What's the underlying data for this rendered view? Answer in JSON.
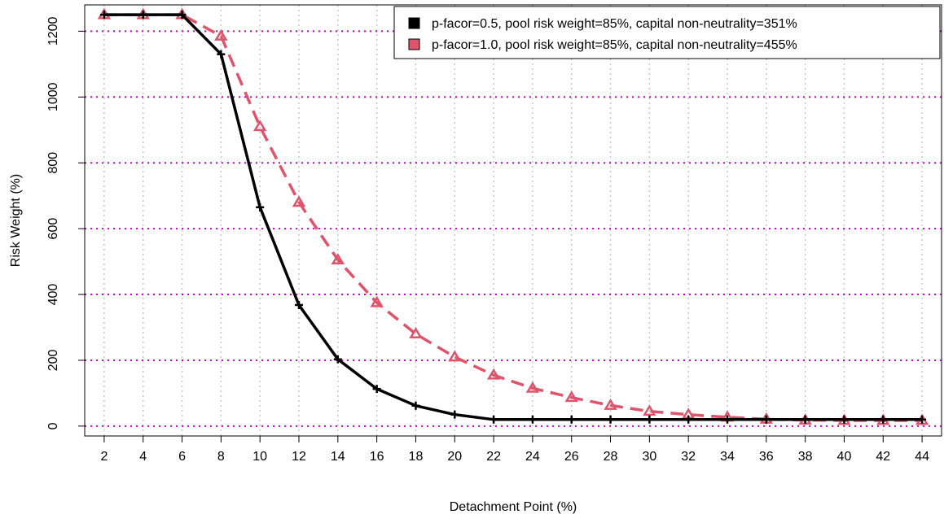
{
  "chart_data": {
    "type": "line",
    "title": "",
    "xlabel": "Detachment Point (%)",
    "ylabel": "Risk Weight (%)",
    "xlim": [
      1,
      45
    ],
    "ylim": [
      -30,
      1280
    ],
    "x_ticks": [
      2,
      4,
      6,
      8,
      10,
      12,
      14,
      16,
      18,
      20,
      22,
      24,
      26,
      28,
      30,
      32,
      34,
      36,
      38,
      40,
      42,
      44
    ],
    "y_ticks": [
      0,
      200,
      400,
      600,
      800,
      1000,
      1200
    ],
    "grid": {
      "vertical": "dotted gray",
      "horizontal": "dotted magenta"
    },
    "legend_position": "top-right",
    "x": [
      2,
      4,
      6,
      8,
      10,
      12,
      14,
      16,
      18,
      20,
      22,
      24,
      26,
      28,
      30,
      32,
      34,
      36,
      38,
      40,
      42,
      44
    ],
    "series": [
      {
        "name": "p-facor=0.5, pool risk weight=85%, capital non-neutrality=351%",
        "color": "#000000",
        "line_style": "solid",
        "marker": "cross",
        "values": [
          1250,
          1250,
          1250,
          1130,
          665,
          368,
          203,
          113,
          62,
          35,
          20,
          20,
          20,
          20,
          20,
          20,
          20,
          20,
          20,
          20,
          20,
          20
        ]
      },
      {
        "name": "p-facor=1.0, pool risk weight=85%, capital non-neutrality=455%",
        "color": "#DF536B",
        "line_style": "dashed",
        "marker": "triangle",
        "values": [
          1250,
          1250,
          1250,
          1185,
          910,
          680,
          505,
          375,
          280,
          210,
          155,
          115,
          87,
          63,
          45,
          35,
          27,
          21,
          18,
          17,
          17,
          17
        ]
      }
    ]
  }
}
